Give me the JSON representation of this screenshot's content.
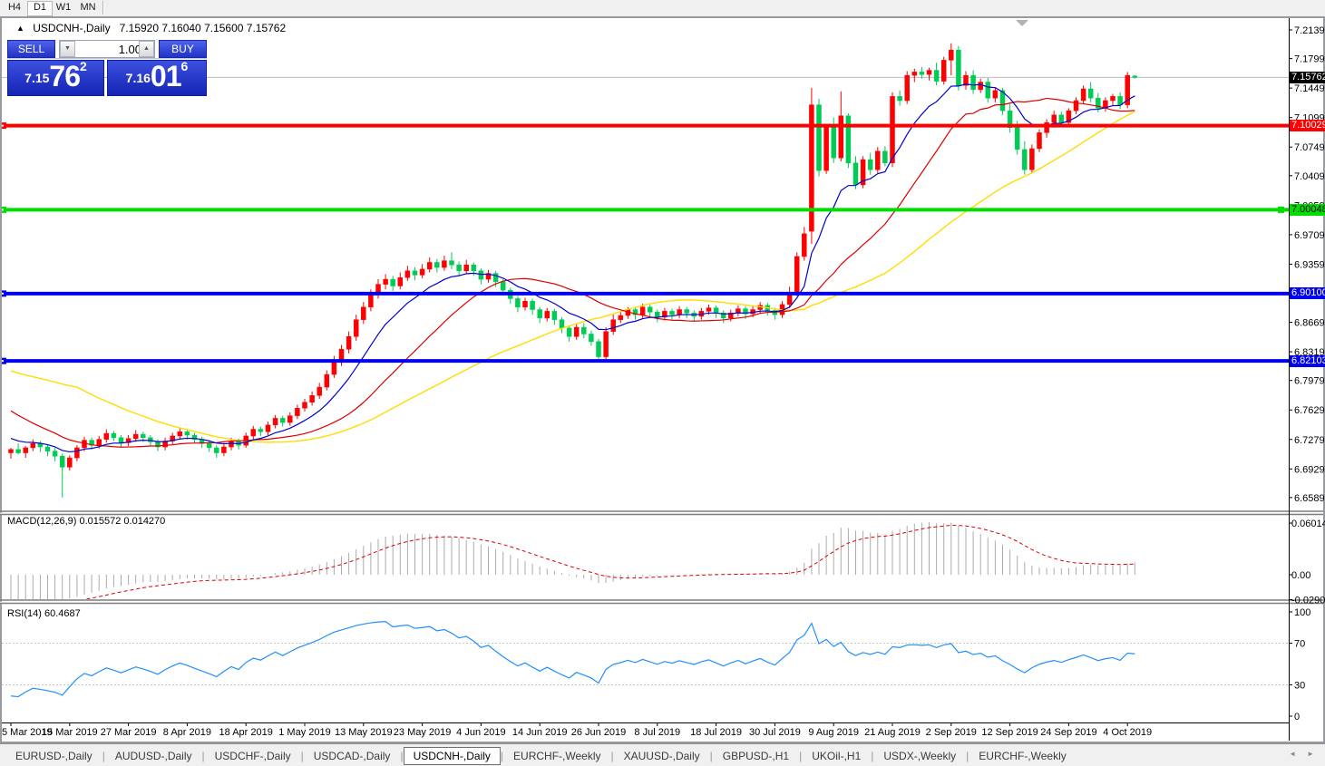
{
  "toolbar": {
    "timeframes": [
      {
        "label": "H4",
        "active": false
      },
      {
        "label": "D1",
        "active": true
      },
      {
        "label": "W1",
        "active": false
      },
      {
        "label": "MN",
        "active": false
      }
    ]
  },
  "chart": {
    "title": {
      "collapse_icon": "▲",
      "symbol": "USDCNH-,Daily",
      "ohlc": "7.15920 7.16040 7.15600 7.15762"
    },
    "trade_panel": {
      "sell_label": "SELL",
      "buy_label": "BUY",
      "volume": "1.00",
      "spin_down_icon": "▼",
      "spin_up_icon": "▲",
      "sell_price": {
        "small": "7.15",
        "big": "76",
        "sup": "2"
      },
      "buy_price": {
        "small": "7.16",
        "big": "01",
        "sup": "6"
      }
    },
    "macd_label": "MACD(12,26,9) 0.015572 0.014270",
    "rsi_label": "RSI(14) 60.4687"
  },
  "chart_data": {
    "type": "candlestick",
    "symbol": "USDCNH",
    "timeframe": "Daily",
    "ohlc_display": {
      "open": "7.15920",
      "high": "7.16040",
      "low": "7.15600",
      "close": "7.15762"
    },
    "last_price": 7.15762,
    "last_price_label": "7.15762",
    "y_axis_labels": [
      "7.21390",
      "7.17990",
      "7.14490",
      "7.10990",
      "7.07490",
      "7.04090",
      "7.00590",
      "6.97090",
      "6.93590",
      "6.90090",
      "6.86690",
      "6.83190",
      "6.79790",
      "6.76290",
      "6.72790",
      "6.69290",
      "6.65890"
    ],
    "x_labels": [
      "5 Mar 2019",
      "15 Mar 2019",
      "27 Mar 2019",
      "8 Apr 2019",
      "18 Apr 2019",
      "1 May 2019",
      "13 May 2019",
      "23 May 2019",
      "4 Jun 2019",
      "14 Jun 2019",
      "26 Jun 2019",
      "8 Jul 2019",
      "18 Jul 2019",
      "30 Jul 2019",
      "9 Aug 2019",
      "21 Aug 2019",
      "2 Sep 2019",
      "12 Sep 2019",
      "24 Sep 2019",
      "4 Oct 2019"
    ],
    "h_lines": [
      {
        "price": 7.10029,
        "label": "7.10029",
        "color": "#ff0000",
        "text_color": "#ffffff"
      },
      {
        "price": 7.00048,
        "label": "7.00048",
        "color": "#00dd00",
        "text_color": "#000000"
      },
      {
        "price": 6.901,
        "label": "6.90100",
        "color": "#0000ee",
        "text_color": "#ffffff"
      },
      {
        "price": 6.82103,
        "label": "6.82103",
        "color": "#0000ee",
        "text_color": "#ffffff"
      }
    ],
    "macd": {
      "params": "12,26,9",
      "value_main": "0.015572",
      "value_signal": "0.014270",
      "axis_labels": [
        {
          "text": "0.060146",
          "y_value": 0.060146
        },
        {
          "text": "0.00",
          "y_value": 0.0
        },
        {
          "text": "-0.029060",
          "y_value": -0.02906
        }
      ]
    },
    "rsi": {
      "period": "14",
      "value": "60.4687",
      "axis_labels": [
        "100",
        "70",
        "30",
        "0"
      ],
      "axis_values": [
        100,
        70,
        30,
        0
      ],
      "levels": [
        70,
        30
      ]
    },
    "colors": {
      "up": "#ff0000",
      "down": "#00cc55",
      "ma_fast": "#0000cc",
      "ma_mid": "#dd0000",
      "ma_slow": "#ffdd00",
      "macd_hist": "#ababab",
      "macd_signal": "#dd0000",
      "rsi_line": "#1e90ff",
      "last_price_line": "#bdbdbd"
    },
    "ma_periods": {
      "fast_ema": 10,
      "mid_sma": 22,
      "slow_sma": 45
    },
    "indicator_warmup_closes": [
      6.93,
      6.922,
      6.915,
      6.905,
      6.896,
      6.902,
      6.89,
      6.878,
      6.868,
      6.872,
      6.86,
      6.848,
      6.852,
      6.84,
      6.828,
      6.82,
      6.825,
      6.812,
      6.8,
      6.79,
      6.795,
      6.782,
      6.77,
      6.76,
      6.765,
      6.752,
      6.742,
      6.748,
      6.735,
      6.725,
      6.73,
      6.72,
      6.714,
      6.718,
      6.712
    ],
    "candles": [
      [
        6.712,
        6.718,
        6.705,
        6.716
      ],
      [
        6.716,
        6.723,
        6.71,
        6.712
      ],
      [
        6.712,
        6.72,
        6.706,
        6.718
      ],
      [
        6.718,
        6.728,
        6.714,
        6.723
      ],
      [
        6.723,
        6.726,
        6.713,
        6.719
      ],
      [
        6.719,
        6.722,
        6.708,
        6.714
      ],
      [
        6.714,
        6.718,
        6.702,
        6.708
      ],
      [
        6.708,
        6.711,
        6.659,
        6.695
      ],
      [
        6.695,
        6.709,
        6.691,
        6.706
      ],
      [
        6.706,
        6.721,
        6.702,
        6.718
      ],
      [
        6.718,
        6.731,
        6.714,
        6.727
      ],
      [
        6.727,
        6.73,
        6.716,
        6.721
      ],
      [
        6.721,
        6.732,
        6.717,
        6.728
      ],
      [
        6.728,
        6.74,
        6.724,
        6.735
      ],
      [
        6.735,
        6.738,
        6.726,
        6.73
      ],
      [
        6.73,
        6.733,
        6.719,
        6.724
      ],
      [
        6.724,
        6.733,
        6.72,
        6.729
      ],
      [
        6.729,
        6.739,
        6.725,
        6.734
      ],
      [
        6.734,
        6.737,
        6.725,
        6.73
      ],
      [
        6.73,
        6.733,
        6.72,
        6.725
      ],
      [
        6.725,
        6.728,
        6.714,
        6.719
      ],
      [
        6.719,
        6.73,
        6.715,
        6.726
      ],
      [
        6.726,
        6.736,
        6.722,
        6.732
      ],
      [
        6.732,
        6.742,
        6.728,
        6.737
      ],
      [
        6.737,
        6.74,
        6.728,
        6.733
      ],
      [
        6.733,
        6.736,
        6.723,
        6.728
      ],
      [
        6.728,
        6.731,
        6.718,
        6.723
      ],
      [
        6.723,
        6.726,
        6.713,
        6.718
      ],
      [
        6.718,
        6.721,
        6.706,
        6.712
      ],
      [
        6.712,
        6.724,
        6.708,
        6.719
      ],
      [
        6.719,
        6.73,
        6.715,
        6.726
      ],
      [
        6.726,
        6.729,
        6.716,
        6.721
      ],
      [
        6.721,
        6.736,
        6.718,
        6.732
      ],
      [
        6.732,
        6.744,
        6.728,
        6.74
      ],
      [
        6.74,
        6.743,
        6.732,
        6.737
      ],
      [
        6.737,
        6.749,
        6.733,
        6.745
      ],
      [
        6.745,
        6.757,
        6.741,
        6.753
      ],
      [
        6.753,
        6.756,
        6.743,
        6.748
      ],
      [
        6.748,
        6.76,
        6.744,
        6.756
      ],
      [
        6.756,
        6.769,
        6.752,
        6.765
      ],
      [
        6.765,
        6.776,
        6.761,
        6.772
      ],
      [
        6.772,
        6.785,
        6.768,
        6.78
      ],
      [
        6.78,
        6.795,
        6.776,
        6.79
      ],
      [
        6.79,
        6.81,
        6.786,
        6.805
      ],
      [
        6.805,
        6.827,
        6.801,
        6.822
      ],
      [
        6.822,
        6.84,
        6.815,
        6.835
      ],
      [
        6.835,
        6.856,
        6.83,
        6.85
      ],
      [
        6.85,
        6.876,
        6.845,
        6.87
      ],
      [
        6.87,
        6.891,
        6.865,
        6.885
      ],
      [
        6.885,
        6.906,
        6.88,
        6.9
      ],
      [
        6.9,
        6.918,
        6.895,
        6.912
      ],
      [
        6.912,
        6.924,
        6.906,
        6.918
      ],
      [
        6.918,
        6.922,
        6.904,
        6.91
      ],
      [
        6.91,
        6.926,
        6.906,
        6.92
      ],
      [
        6.92,
        6.934,
        6.916,
        6.928
      ],
      [
        6.928,
        6.932,
        6.917,
        6.923
      ],
      [
        6.923,
        6.936,
        6.919,
        6.93
      ],
      [
        6.93,
        6.944,
        6.926,
        6.938
      ],
      [
        6.938,
        6.942,
        6.926,
        6.932
      ],
      [
        6.932,
        6.946,
        6.928,
        6.94
      ],
      [
        6.94,
        6.95,
        6.93,
        6.935
      ],
      [
        6.935,
        6.939,
        6.922,
        6.928
      ],
      [
        6.928,
        6.941,
        6.924,
        6.935
      ],
      [
        6.935,
        6.938,
        6.922,
        6.928
      ],
      [
        6.928,
        6.931,
        6.912,
        6.918
      ],
      [
        6.918,
        6.929,
        6.914,
        6.925
      ],
      [
        6.925,
        6.928,
        6.909,
        6.915
      ],
      [
        6.915,
        6.918,
        6.899,
        6.905
      ],
      [
        6.905,
        6.908,
        6.889,
        6.895
      ],
      [
        6.895,
        6.898,
        6.879,
        6.885
      ],
      [
        6.885,
        6.896,
        6.881,
        6.892
      ],
      [
        6.892,
        6.895,
        6.876,
        6.882
      ],
      [
        6.882,
        6.885,
        6.866,
        6.872
      ],
      [
        6.872,
        6.884,
        6.868,
        6.88
      ],
      [
        6.88,
        6.883,
        6.864,
        6.87
      ],
      [
        6.87,
        6.873,
        6.854,
        6.86
      ],
      [
        6.86,
        6.863,
        6.844,
        6.85
      ],
      [
        6.85,
        6.865,
        6.846,
        6.861
      ],
      [
        6.861,
        6.866,
        6.848,
        6.853
      ],
      [
        6.853,
        6.857,
        6.839,
        6.844
      ],
      [
        6.844,
        6.847,
        6.821,
        6.826
      ],
      [
        6.826,
        6.861,
        6.822,
        6.856
      ],
      [
        6.856,
        6.876,
        6.852,
        6.87
      ],
      [
        6.87,
        6.879,
        6.866,
        6.875
      ],
      [
        6.875,
        6.885,
        6.871,
        6.882
      ],
      [
        6.882,
        6.885,
        6.87,
        6.876
      ],
      [
        6.876,
        6.889,
        6.872,
        6.885
      ],
      [
        6.885,
        6.888,
        6.873,
        6.879
      ],
      [
        6.879,
        6.882,
        6.867,
        6.873
      ],
      [
        6.873,
        6.884,
        6.869,
        6.88
      ],
      [
        6.88,
        6.883,
        6.87,
        6.876
      ],
      [
        6.876,
        6.886,
        6.872,
        6.882
      ],
      [
        6.882,
        6.885,
        6.872,
        6.878
      ],
      [
        6.878,
        6.881,
        6.868,
        6.874
      ],
      [
        6.874,
        6.884,
        6.87,
        6.88
      ],
      [
        6.88,
        6.888,
        6.876,
        6.884
      ],
      [
        6.884,
        6.887,
        6.872,
        6.878
      ],
      [
        6.878,
        6.881,
        6.866,
        6.872
      ],
      [
        6.872,
        6.882,
        6.868,
        6.878
      ],
      [
        6.878,
        6.887,
        6.874,
        6.883
      ],
      [
        6.883,
        6.886,
        6.871,
        6.877
      ],
      [
        6.877,
        6.886,
        6.873,
        6.882
      ],
      [
        6.882,
        6.891,
        6.878,
        6.887
      ],
      [
        6.887,
        6.89,
        6.875,
        6.881
      ],
      [
        6.881,
        6.884,
        6.87,
        6.876
      ],
      [
        6.876,
        6.892,
        6.872,
        6.888
      ],
      [
        6.888,
        6.909,
        6.884,
        6.902
      ],
      [
        6.902,
        6.95,
        6.898,
        6.945
      ],
      [
        6.945,
        6.98,
        6.94,
        6.972
      ],
      [
        6.975,
        7.145,
        6.96,
        7.125
      ],
      [
        7.125,
        7.132,
        7.04,
        7.047
      ],
      [
        7.047,
        7.102,
        7.043,
        7.098
      ],
      [
        7.098,
        7.11,
        7.056,
        7.062
      ],
      [
        7.062,
        7.141,
        7.058,
        7.112
      ],
      [
        7.112,
        7.115,
        7.05,
        7.056
      ],
      [
        7.056,
        7.064,
        7.025,
        7.03
      ],
      [
        7.03,
        7.064,
        7.026,
        7.06
      ],
      [
        7.06,
        7.068,
        7.042,
        7.048
      ],
      [
        7.048,
        7.075,
        7.044,
        7.07
      ],
      [
        7.07,
        7.076,
        7.052,
        7.056
      ],
      [
        7.056,
        7.14,
        7.051,
        7.135
      ],
      [
        7.135,
        7.142,
        7.124,
        7.13
      ],
      [
        7.13,
        7.165,
        7.126,
        7.16
      ],
      [
        7.16,
        7.168,
        7.152,
        7.164
      ],
      [
        7.164,
        7.17,
        7.156,
        7.161
      ],
      [
        7.161,
        7.169,
        7.154,
        7.166
      ],
      [
        7.166,
        7.175,
        7.148,
        7.153
      ],
      [
        7.153,
        7.182,
        7.149,
        7.178
      ],
      [
        7.178,
        7.198,
        7.16,
        7.19
      ],
      [
        7.19,
        7.195,
        7.142,
        7.148
      ],
      [
        7.148,
        7.165,
        7.143,
        7.16
      ],
      [
        7.16,
        7.166,
        7.138,
        7.143
      ],
      [
        7.143,
        7.156,
        7.139,
        7.152
      ],
      [
        7.152,
        7.157,
        7.128,
        7.133
      ],
      [
        7.133,
        7.146,
        7.128,
        7.142
      ],
      [
        7.142,
        7.145,
        7.113,
        7.118
      ],
      [
        7.118,
        7.126,
        7.092,
        7.098
      ],
      [
        7.098,
        7.106,
        7.066,
        7.072
      ],
      [
        7.072,
        7.082,
        7.042,
        7.048
      ],
      [
        7.048,
        7.078,
        7.044,
        7.073
      ],
      [
        7.073,
        7.096,
        7.069,
        7.092
      ],
      [
        7.092,
        7.108,
        7.086,
        7.104
      ],
      [
        7.104,
        7.118,
        7.098,
        7.113
      ],
      [
        7.113,
        7.117,
        7.099,
        7.104
      ],
      [
        7.104,
        7.121,
        7.1,
        7.118
      ],
      [
        7.118,
        7.134,
        7.114,
        7.13
      ],
      [
        7.13,
        7.148,
        7.126,
        7.144
      ],
      [
        7.144,
        7.152,
        7.128,
        7.133
      ],
      [
        7.133,
        7.139,
        7.116,
        7.121
      ],
      [
        7.121,
        7.134,
        7.117,
        7.13
      ],
      [
        7.13,
        7.138,
        7.124,
        7.135
      ],
      [
        7.135,
        7.14,
        7.12,
        7.125
      ],
      [
        7.125,
        7.164,
        7.121,
        7.16
      ],
      [
        7.1592,
        7.1604,
        7.156,
        7.1576
      ]
    ]
  },
  "tabs": {
    "items": [
      {
        "label": "EURUSD-,Daily",
        "active": false
      },
      {
        "label": "AUDUSD-,Daily",
        "active": false
      },
      {
        "label": "USDCHF-,Daily",
        "active": false
      },
      {
        "label": "USDCAD-,Daily",
        "active": false
      },
      {
        "label": "USDCNH-,Daily",
        "active": true
      },
      {
        "label": "EURCHF-,Weekly",
        "active": false
      },
      {
        "label": "XAUUSD-,Daily",
        "active": false
      },
      {
        "label": "GBPUSD-,H1",
        "active": false
      },
      {
        "label": "UKOil-,H1",
        "active": false
      },
      {
        "label": "USDX-,Weekly",
        "active": false
      },
      {
        "label": "EURCHF-,Weekly",
        "active": false
      }
    ],
    "separator": "|",
    "scroll_left_icon": "◄",
    "scroll_right_icon": "►"
  }
}
